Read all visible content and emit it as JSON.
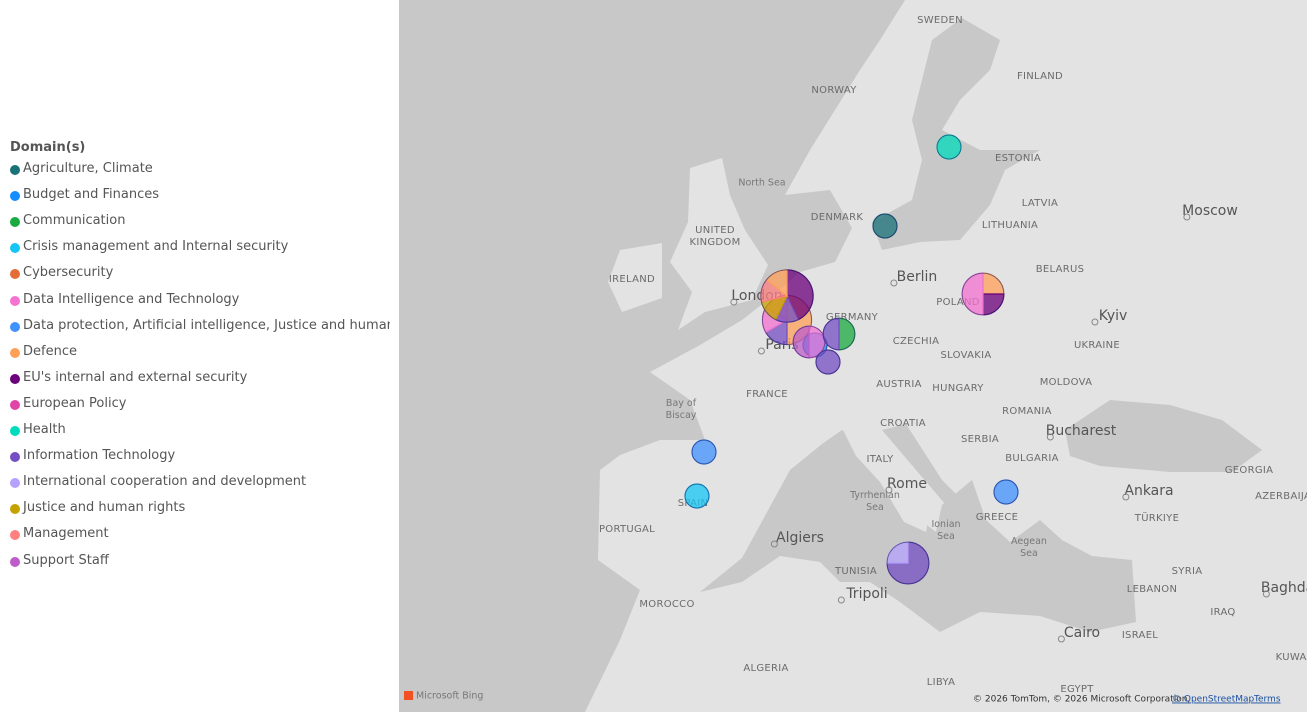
{
  "legend": {
    "title": "Domain(s)",
    "items": [
      {
        "name": "Agriculture, Climate",
        "color": "#197278"
      },
      {
        "name": "Budget and Finances",
        "color": "#118DFF"
      },
      {
        "name": "Communication",
        "color": "#1AAB40"
      },
      {
        "name": "Crisis management and Internal security",
        "color": "#15C6F4"
      },
      {
        "name": "Cybersecurity",
        "color": "#E66C37"
      },
      {
        "name": "Data Intelligence and Technology",
        "color": "#F472D0"
      },
      {
        "name": "Data protection, Artificial intelligence, Justice and human ri...",
        "color": "#4092FF"
      },
      {
        "name": "Defence",
        "color": "#FFA058"
      },
      {
        "name": "EU's internal and external security",
        "color": "#6B007B"
      },
      {
        "name": "European Policy",
        "color": "#E044A7"
      },
      {
        "name": "Health",
        "color": "#00DBBC"
      },
      {
        "name": "Information Technology",
        "color": "#744EC2"
      },
      {
        "name": "International cooperation and development",
        "color": "#B5A1FF"
      },
      {
        "name": "Justice and human rights",
        "color": "#C4A200"
      },
      {
        "name": "Management",
        "color": "#FF8080"
      },
      {
        "name": "Support Staff",
        "color": "#BE5DC9"
      }
    ]
  },
  "map": {
    "labels": [
      "SWEDEN",
      "FINLAND",
      "NORWAY",
      "ESTONIA",
      "North Sea",
      "DENMARK",
      "LATVIA",
      "UNITED KINGDOM",
      "LITHUANIA",
      "Moscow",
      "IRELAND",
      "Berlin",
      "BELARUS",
      "London",
      "POLAND",
      "GERMANY",
      "Kyiv",
      "CZECHIA",
      "UKRAINE",
      "Paris",
      "SLOVAKIA",
      "AUSTRIA",
      "HUNGARY",
      "MOLDOVA",
      "FRANCE",
      "Bay of Biscay",
      "ROMANIA",
      "CROATIA",
      "Bucharest",
      "SERBIA",
      "ITALY",
      "BULGARIA",
      "GEORGIA",
      "Rome",
      "Ankara",
      "AZERBAIJAN",
      "Tyrrhenian Sea",
      "PORTUGAL",
      "SPAIN",
      "TÜRKIYE",
      "GREECE",
      "Ionian Sea",
      "Algiers",
      "Aegean Sea",
      "SYRIA",
      "TUNISIA",
      "LEBANON",
      "Baghdad",
      "Tripoli",
      "MOROCCO",
      "IRAQ",
      "Cairo",
      "ISRAEL",
      "KUWAIT",
      "ALGERIA",
      "LIBYA",
      "EGYPT"
    ],
    "provider": "Microsoft Bing",
    "copyright": "© 2026 TomTom, © 2026 Microsoft Corporation,",
    "osm": "© OpenStreetMap",
    "terms": "Terms"
  },
  "markers": [
    {
      "slices": [
        {
          "domain": "Health",
          "value": 1
        }
      ]
    },
    {
      "slices": [
        {
          "domain": "Agriculture, Climate",
          "value": 1
        }
      ]
    },
    {
      "slices": [
        {
          "domain": "Defence",
          "value": 1
        },
        {
          "domain": "EU's internal and external security",
          "value": 1
        },
        {
          "domain": "Data Intelligence and Technology",
          "value": 2
        }
      ]
    },
    {
      "slices": [
        {
          "domain": "EU's internal and external security",
          "value": 3
        },
        {
          "domain": "Information Technology",
          "value": 1
        },
        {
          "domain": "Justice and human rights",
          "value": 1
        },
        {
          "domain": "Management",
          "value": 1
        },
        {
          "domain": "Defence",
          "value": 1
        }
      ]
    },
    {
      "slices": [
        {
          "domain": "Defence",
          "value": 3
        },
        {
          "domain": "Information Technology",
          "value": 1
        },
        {
          "domain": "Data Intelligence and Technology",
          "value": 1
        },
        {
          "domain": "Management",
          "value": 1
        }
      ]
    },
    {
      "slices": [
        {
          "domain": "Data Intelligence and Technology",
          "value": 1
        },
        {
          "domain": "Support Staff",
          "value": 1
        }
      ]
    },
    {
      "slices": [
        {
          "domain": "Budget and Finances",
          "value": 1
        }
      ]
    },
    {
      "slices": [
        {
          "domain": "Communication",
          "value": 1
        },
        {
          "domain": "Information Technology",
          "value": 1
        }
      ]
    },
    {
      "slices": [
        {
          "domain": "Information Technology",
          "value": 1
        }
      ]
    },
    {
      "slices": [
        {
          "domain": "Data protection, Artificial intelligence, Justice and human ri...",
          "value": 1
        }
      ]
    },
    {
      "slices": [
        {
          "domain": "Crisis management and Internal security",
          "value": 1
        }
      ]
    },
    {
      "slices": [
        {
          "domain": "Data protection, Artificial intelligence, Justice and human ri...",
          "value": 1
        }
      ]
    },
    {
      "slices": [
        {
          "domain": "Information Technology",
          "value": 3
        },
        {
          "domain": "International cooperation and development",
          "value": 1
        }
      ]
    }
  ]
}
